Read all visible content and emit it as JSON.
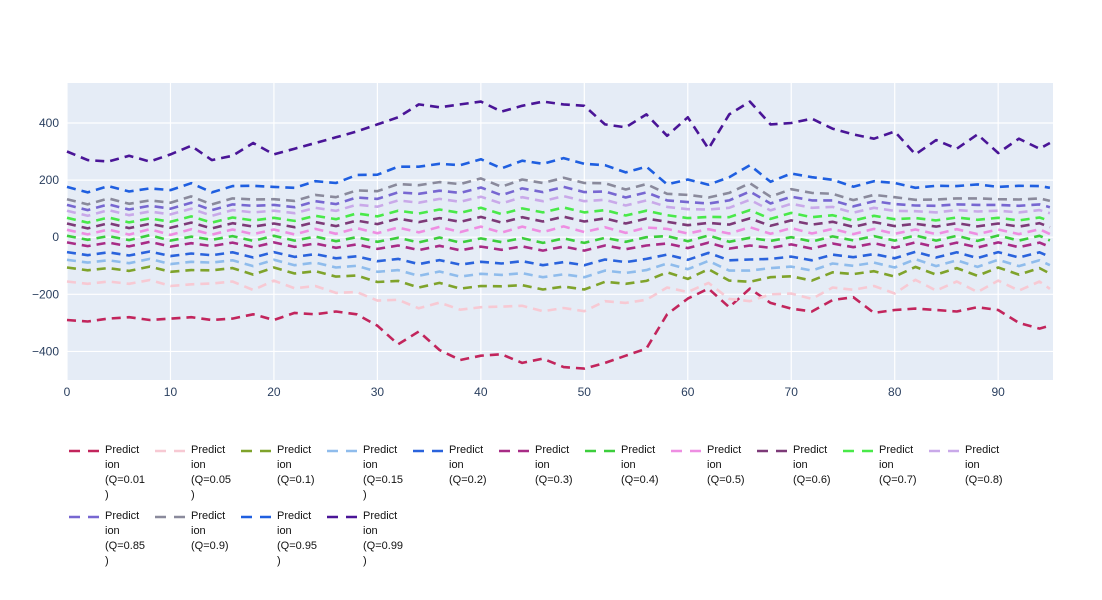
{
  "chart_data": {
    "type": "line",
    "title": "",
    "xlabel": "",
    "ylabel": "",
    "line_style": "dashed",
    "line_dash": "9,6",
    "line_width": 2.6,
    "grid": true,
    "plot_bg": "#E5ECF6",
    "grid_color": "#FFFFFF",
    "tick_color": "#2A3F5F",
    "legend_position": "bottom",
    "xlim": [
      0,
      95.3
    ],
    "ylim": [
      -500,
      540
    ],
    "xticks": [
      0,
      10,
      20,
      30,
      40,
      50,
      60,
      70,
      80,
      90
    ],
    "yticks": [
      -400,
      -200,
      0,
      200,
      400
    ],
    "ytick_labels": [
      "−400",
      "−200",
      "0",
      "200",
      "400"
    ],
    "x": [
      0,
      2,
      4,
      6,
      8,
      10,
      12,
      14,
      16,
      18,
      20,
      22,
      24,
      26,
      28,
      30,
      32,
      34,
      36,
      38,
      40,
      42,
      44,
      46,
      48,
      50,
      52,
      54,
      56,
      58,
      60,
      62,
      64,
      66,
      68,
      70,
      72,
      74,
      76,
      78,
      80,
      82,
      84,
      86,
      88,
      90,
      92,
      94,
      95
    ],
    "series": [
      {
        "name": "Prediction (Q=0.01)",
        "quantile": 0.01,
        "color": "#C2255C",
        "legend_lines": [
          "Predict",
          "ion",
          "(Q=0.01",
          ")"
        ],
        "values": [
          -290,
          -295,
          -285,
          -280,
          -290,
          -285,
          -280,
          -290,
          -285,
          -270,
          -290,
          -265,
          -270,
          -260,
          -270,
          -310,
          -375,
          -330,
          -395,
          -430,
          -415,
          -410,
          -440,
          -425,
          -455,
          -460,
          -440,
          -415,
          -390,
          -270,
          -215,
          -180,
          -245,
          -180,
          -230,
          -250,
          -260,
          -220,
          -210,
          -265,
          -255,
          -250,
          -255,
          -260,
          -245,
          -255,
          -300,
          -320,
          -310
        ]
      },
      {
        "name": "Prediction (Q=0.05)",
        "quantile": 0.05,
        "color": "#F7C9D3",
        "legend_lines": [
          "Predict",
          "ion",
          "(Q=0.05",
          ")"
        ],
        "values": [
          -155,
          -163,
          -155,
          -163,
          -150,
          -171,
          -165,
          -162,
          -155,
          -185,
          -152,
          -179,
          -171,
          -195,
          -192,
          -222,
          -219,
          -249,
          -229,
          -254,
          -245,
          -243,
          -240,
          -259,
          -248,
          -259,
          -224,
          -230,
          -219,
          -176,
          -192,
          -160,
          -216,
          -224,
          -200,
          -197,
          -216,
          -176,
          -184,
          -171,
          -197,
          -149,
          -187,
          -155,
          -192,
          -152,
          -187,
          -155,
          -181
        ]
      },
      {
        "name": "Prediction (Q=0.1)",
        "quantile": 0.1,
        "color": "#7FA32B",
        "legend_lines": [
          "Predict",
          "ion",
          "(Q=0.1)"
        ],
        "values": [
          -106,
          -116,
          -108,
          -118,
          -103,
          -121,
          -115,
          -116,
          -108,
          -131,
          -106,
          -127,
          -119,
          -138,
          -134,
          -157,
          -153,
          -176,
          -160,
          -180,
          -171,
          -172,
          -168,
          -183,
          -173,
          -183,
          -156,
          -163,
          -153,
          -123,
          -146,
          -112,
          -152,
          -156,
          -140,
          -137,
          -152,
          -123,
          -129,
          -119,
          -138,
          -104,
          -131,
          -108,
          -135,
          -106,
          -131,
          -108,
          -127
        ]
      },
      {
        "name": "Prediction (Q=0.15)",
        "quantile": 0.15,
        "color": "#8FBCEC",
        "legend_lines": [
          "Predict",
          "ion",
          "(Q=0.15",
          ")"
        ],
        "values": [
          -79,
          -89,
          -81,
          -91,
          -76,
          -94,
          -86,
          -89,
          -81,
          -101,
          -79,
          -98,
          -89,
          -106,
          -100,
          -121,
          -115,
          -135,
          -120,
          -138,
          -128,
          -132,
          -126,
          -140,
          -130,
          -140,
          -117,
          -125,
          -115,
          -92,
          -112,
          -83,
          -117,
          -117,
          -108,
          -103,
          -117,
          -92,
          -100,
          -89,
          -106,
          -77,
          -101,
          -81,
          -104,
          -79,
          -101,
          -81,
          -98
        ]
      },
      {
        "name": "Prediction (Q=0.2)",
        "quantile": 0.2,
        "color": "#2A63DC",
        "legend_lines": [
          "Predict",
          "ion",
          "(Q=0.2)"
        ],
        "values": [
          -52,
          -63,
          -53,
          -64,
          -50,
          -66,
          -57,
          -63,
          -53,
          -71,
          -52,
          -69,
          -59,
          -74,
          -67,
          -84,
          -76,
          -94,
          -80,
          -96,
          -86,
          -92,
          -84,
          -98,
          -87,
          -98,
          -78,
          -87,
          -76,
          -61,
          -79,
          -55,
          -81,
          -78,
          -76,
          -68,
          -81,
          -61,
          -70,
          -59,
          -74,
          -51,
          -71,
          -53,
          -73,
          -52,
          -71,
          -53,
          -69
        ]
      },
      {
        "name": "Prediction (Q=0.3)",
        "quantile": 0.3,
        "color": "#A82C86",
        "legend_lines": [
          "Predict",
          "ion",
          "(Q=0.3)"
        ],
        "values": [
          -18,
          -31,
          -19,
          -32,
          -16,
          -33,
          -21,
          -31,
          -19,
          -35,
          -18,
          -34,
          -22,
          -37,
          -25,
          -41,
          -29,
          -45,
          -30,
          -46,
          -33,
          -44,
          -32,
          -47,
          -33,
          -47,
          -29,
          -42,
          -29,
          -22,
          -38,
          -19,
          -40,
          -29,
          -37,
          -25,
          -40,
          -22,
          -35,
          -21,
          -37,
          -18,
          -35,
          -19,
          -36,
          -18,
          -35,
          -19,
          -34
        ]
      },
      {
        "name": "Prediction (Q=0.4)",
        "quantile": 0.4,
        "color": "#3CCE3C",
        "legend_lines": [
          "Predict",
          "ion",
          "(Q=0.4)"
        ],
        "values": [
          5,
          -9,
          4,
          -10,
          7,
          -12,
          2,
          -9,
          4,
          -13,
          5,
          -12,
          2,
          -14,
          0,
          -16,
          -2,
          -18,
          -1,
          -19,
          -4,
          -17,
          -3,
          -20,
          -4,
          -20,
          -2,
          -16,
          0,
          4,
          -14,
          6,
          -16,
          -2,
          -13,
          0,
          -15,
          3,
          -11,
          4,
          -12,
          6,
          -12,
          5,
          -13,
          6,
          -12,
          5,
          -11
        ]
      },
      {
        "name": "Prediction (Q=0.5)",
        "quantile": 0.5,
        "color": "#EE8EE2",
        "legend_lines": [
          "Predict",
          "ion",
          "(Q=0.5)"
        ],
        "values": [
          26,
          10,
          27,
          9,
          28,
          8,
          28,
          9,
          27,
          11,
          27,
          10,
          29,
          12,
          32,
          14,
          34,
          17,
          36,
          18,
          37,
          16,
          37,
          18,
          38,
          18,
          35,
          15,
          34,
          29,
          13,
          28,
          13,
          35,
          12,
          32,
          13,
          29,
          11,
          29,
          12,
          27,
          11,
          28,
          11,
          27,
          11,
          28,
          11
        ]
      },
      {
        "name": "Prediction (Q=0.6)",
        "quantile": 0.6,
        "color": "#7D3A78",
        "legend_lines": [
          "Predict",
          "ion",
          "(Q=0.6)"
        ],
        "values": [
          48,
          31,
          49,
          32,
          47,
          33,
          51,
          31,
          49,
          37,
          48,
          35,
          53,
          39,
          58,
          46,
          65,
          53,
          67,
          54,
          71,
          51,
          70,
          55,
          72,
          55,
          66,
          48,
          65,
          54,
          42,
          50,
          44,
          66,
          40,
          59,
          44,
          54,
          36,
          53,
          39,
          47,
          37,
          49,
          38,
          48,
          37,
          49,
          35
        ]
      },
      {
        "name": "Prediction (Q=0.7)",
        "quantile": 0.7,
        "color": "#49E949",
        "legend_lines": [
          "Predict",
          "ion",
          "(Q=0.7)"
        ],
        "values": [
          68,
          51,
          69,
          52,
          66,
          54,
          73,
          51,
          69,
          59,
          68,
          57,
          75,
          63,
          83,
          73,
          93,
          83,
          97,
          85,
          103,
          81,
          101,
          87,
          104,
          87,
          95,
          76,
          93,
          77,
          67,
          71,
          70,
          95,
          64,
          85,
          70,
          77,
          58,
          75,
          63,
          67,
          59,
          69,
          61,
          68,
          59,
          69,
          57
        ]
      },
      {
        "name": "Prediction (Q=0.8)",
        "quantile": 0.8,
        "color": "#C9A9E9",
        "legend_lines": [
          "Predict",
          "ion",
          "(Q=0.8)"
        ],
        "values": [
          93,
          75,
          95,
          77,
          90,
          80,
          100,
          75,
          95,
          87,
          93,
          84,
          103,
          92,
          114,
          107,
          129,
          121,
          134,
          124,
          142,
          118,
          140,
          126,
          144,
          126,
          131,
          111,
          129,
          106,
          98,
          97,
          103,
          131,
          94,
          117,
          103,
          106,
          86,
          103,
          92,
          91,
          87,
          95,
          90,
          93,
          87,
          95,
          84
        ]
      },
      {
        "name": "Prediction (Q=0.85)",
        "quantile": 0.85,
        "color": "#7767D1",
        "legend_lines": [
          "Predict",
          "ion",
          "(Q=0.85",
          ")"
        ],
        "values": [
          113,
          95,
          115,
          97,
          110,
          100,
          121,
          95,
          115,
          110,
          113,
          105,
          126,
          116,
          139,
          134,
          157,
          152,
          163,
          155,
          174,
          147,
          171,
          158,
          176,
          158,
          160,
          139,
          157,
          129,
          123,
          118,
          129,
          160,
          118,
          142,
          129,
          129,
          108,
          126,
          116,
          111,
          110,
          115,
          113,
          113,
          110,
          115,
          105
        ]
      },
      {
        "name": "Prediction (Q=0.9)",
        "quantile": 0.9,
        "color": "#8A8A9C",
        "legend_lines": [
          "Predict",
          "ion",
          "(Q=0.9)"
        ],
        "values": [
          133,
          115,
          136,
          117,
          129,
          121,
          143,
          115,
          136,
          132,
          133,
          127,
          148,
          140,
          164,
          161,
          186,
          182,
          193,
          186,
          206,
          177,
          202,
          190,
          208,
          190,
          189,
          167,
          186,
          152,
          148,
          139,
          155,
          189,
          142,
          168,
          155,
          152,
          130,
          148,
          140,
          131,
          132,
          136,
          136,
          133,
          132,
          136,
          127
        ]
      },
      {
        "name": "Prediction (Q=0.95)",
        "quantile": 0.95,
        "color": "#1F5FE0",
        "legend_lines": [
          "Predict",
          "ion",
          "(Q=0.95",
          ")"
        ],
        "values": [
          176,
          157,
          179,
          160,
          171,
          165,
          189,
          157,
          179,
          180,
          176,
          173,
          196,
          190,
          218,
          219,
          247,
          247,
          257,
          252,
          273,
          241,
          268,
          257,
          277,
          257,
          252,
          227,
          247,
          185,
          202,
          184,
          210,
          252,
          194,
          223,
          210,
          201,
          177,
          196,
          190,
          173,
          180,
          179,
          185,
          176,
          180,
          179,
          173
        ]
      },
      {
        "name": "Prediction (Q=0.99)",
        "quantile": 0.99,
        "color": "#4A1597",
        "legend_lines": [
          "Predict",
          "ion",
          "(Q=0.99",
          ")"
        ],
        "values": [
          300,
          270,
          265,
          285,
          265,
          290,
          320,
          270,
          285,
          330,
          290,
          310,
          330,
          350,
          370,
          395,
          420,
          465,
          455,
          465,
          475,
          440,
          460,
          475,
          465,
          460,
          395,
          385,
          430,
          355,
          420,
          310,
          430,
          475,
          395,
          400,
          415,
          380,
          360,
          345,
          370,
          290,
          340,
          310,
          360,
          295,
          345,
          310,
          330
        ]
      }
    ]
  }
}
